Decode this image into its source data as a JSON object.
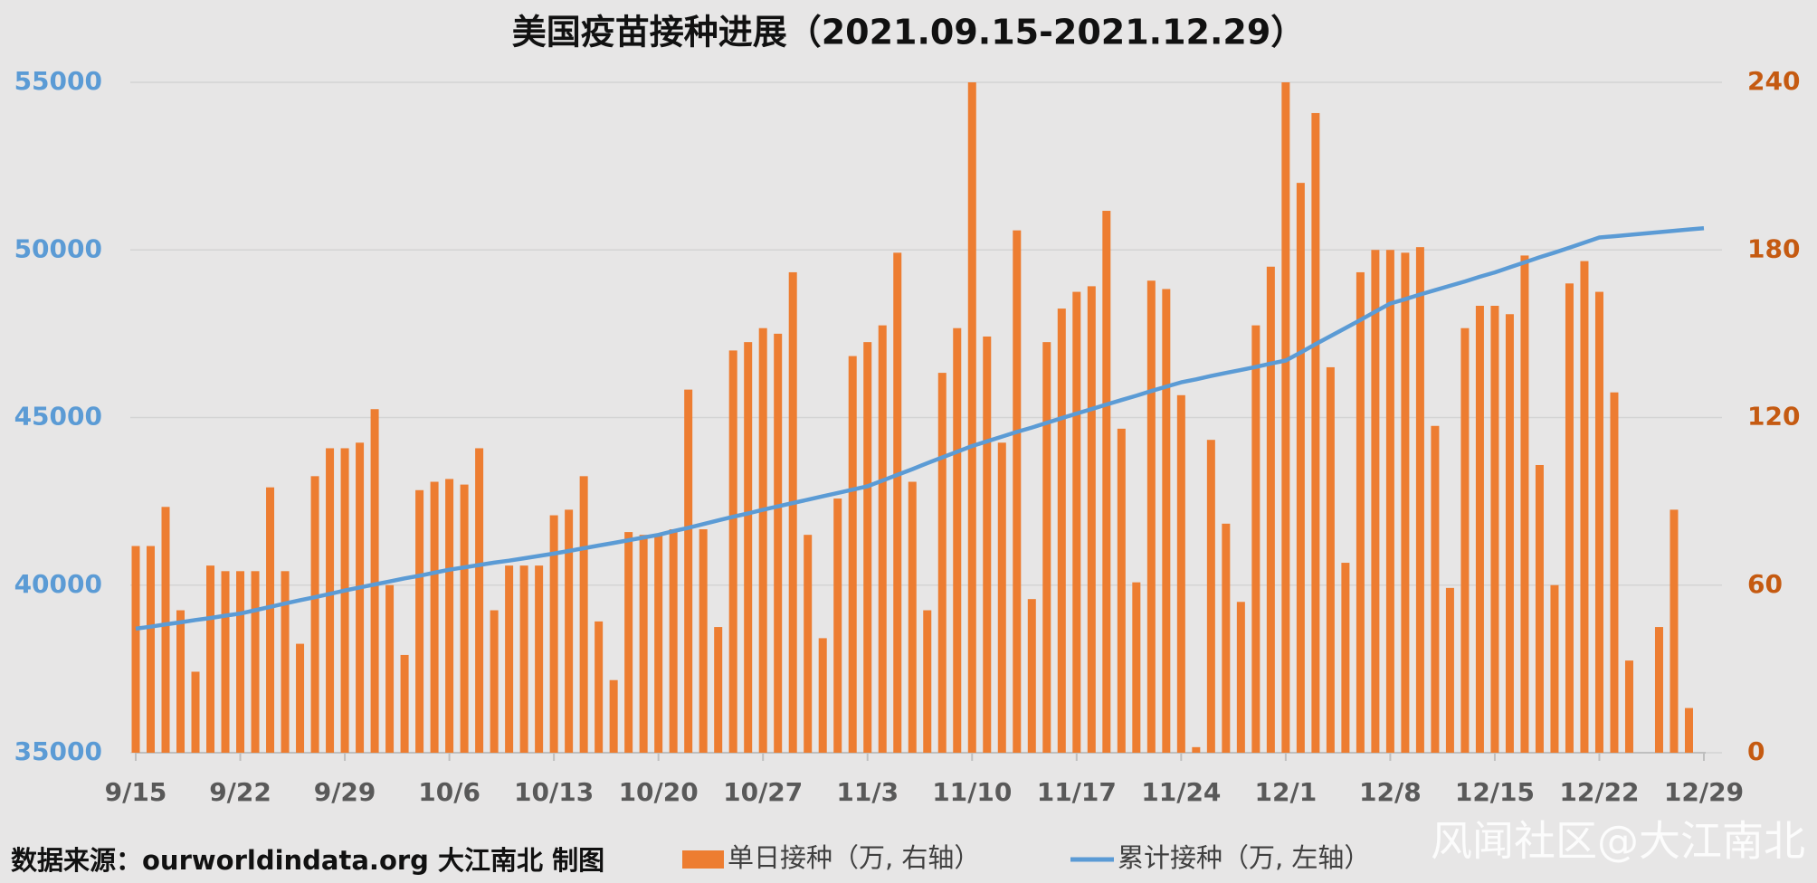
{
  "chart_data": {
    "type": "bar",
    "title": "美国疫苗接种进展（2021.09.15-2021.12.29）",
    "source": "数据来源：ourworldindata.org 大江南北 制图",
    "watermark": "风闻社区@大江南北",
    "categories": [
      "9/15",
      null,
      null,
      null,
      null,
      null,
      null,
      "9/22",
      null,
      null,
      null,
      null,
      null,
      null,
      "9/29",
      null,
      null,
      null,
      null,
      null,
      null,
      "10/6",
      null,
      null,
      null,
      null,
      null,
      null,
      "10/13",
      null,
      null,
      null,
      null,
      null,
      null,
      "10/20",
      null,
      null,
      null,
      null,
      null,
      null,
      "10/27",
      null,
      null,
      null,
      null,
      null,
      null,
      "11/3",
      null,
      null,
      null,
      null,
      null,
      null,
      "11/10",
      null,
      null,
      null,
      null,
      null,
      null,
      "11/17",
      null,
      null,
      null,
      null,
      null,
      null,
      "11/24",
      null,
      null,
      null,
      null,
      null,
      null,
      "12/1",
      null,
      null,
      null,
      null,
      null,
      null,
      "12/8",
      null,
      null,
      null,
      null,
      null,
      null,
      "12/15",
      null,
      null,
      null,
      null,
      null,
      null,
      "12/22",
      null,
      null,
      null,
      null,
      null,
      null,
      "12/29"
    ],
    "series": [
      {
        "name": "单日接种（万, 右轴）",
        "color": "#ed7d31",
        "axis": "y2",
        "values": [
          74,
          74,
          88,
          51,
          29,
          67,
          65,
          65,
          65,
          95,
          65,
          39,
          99,
          109,
          109,
          111,
          123,
          60,
          35,
          94,
          97,
          98,
          96,
          109,
          51,
          67,
          67,
          67,
          85,
          87,
          99,
          47,
          26,
          79,
          78,
          78,
          80,
          130,
          80,
          45,
          144,
          147,
          152,
          150,
          172,
          78,
          41,
          91,
          142,
          147,
          153,
          179,
          97,
          51,
          136,
          152,
          240,
          149,
          111,
          187,
          55,
          147,
          159,
          165,
          167,
          194,
          116,
          61,
          169,
          166,
          128,
          2,
          112,
          82,
          54,
          153,
          174,
          240,
          204,
          229,
          138,
          68,
          172,
          180,
          180,
          179,
          181,
          117,
          59,
          152,
          160,
          160,
          157,
          178,
          103,
          60,
          168,
          176,
          165,
          129,
          33,
          null,
          45,
          87,
          16,
          null
        ]
      },
      {
        "name": "累计接种（万, 左轴）",
        "color": "#5b9bd5",
        "type": "line",
        "values": [
          38700,
          38760,
          38830,
          38890,
          38960,
          39020,
          39090,
          39150,
          39250,
          39350,
          39450,
          39550,
          39640,
          39740,
          39840,
          39930,
          40020,
          40110,
          40200,
          40280,
          40370,
          40460,
          40530,
          40600,
          40670,
          40730,
          40800,
          40870,
          40940,
          41020,
          41100,
          41180,
          41260,
          41340,
          41420,
          41500,
          41610,
          41710,
          41820,
          41930,
          42040,
          42140,
          42250,
          42350,
          42450,
          42550,
          42650,
          42750,
          42850,
          42950,
          43120,
          43290,
          43460,
          43640,
          43810,
          43980,
          44150,
          44290,
          44430,
          44570,
          44700,
          44840,
          44980,
          45120,
          45250,
          45390,
          45520,
          45650,
          45790,
          45920,
          46050,
          46140,
          46240,
          46330,
          46420,
          46510,
          46610,
          46700,
          46940,
          47190,
          47430,
          47670,
          47910,
          48160,
          48400,
          48530,
          48670,
          48800,
          48930,
          49060,
          49200,
          49330,
          49480,
          49630,
          49780,
          49920,
          50070,
          50220,
          50370,
          50410,
          50450,
          50490,
          50530,
          50570,
          50610,
          50650
        ]
      }
    ],
    "ylim": [
      35000,
      55000
    ],
    "yticks": [
      35000,
      40000,
      45000,
      50000,
      55000
    ],
    "y2lim": [
      0,
      240
    ],
    "y2ticks": [
      0,
      60,
      120,
      180,
      240
    ],
    "grid": true
  }
}
